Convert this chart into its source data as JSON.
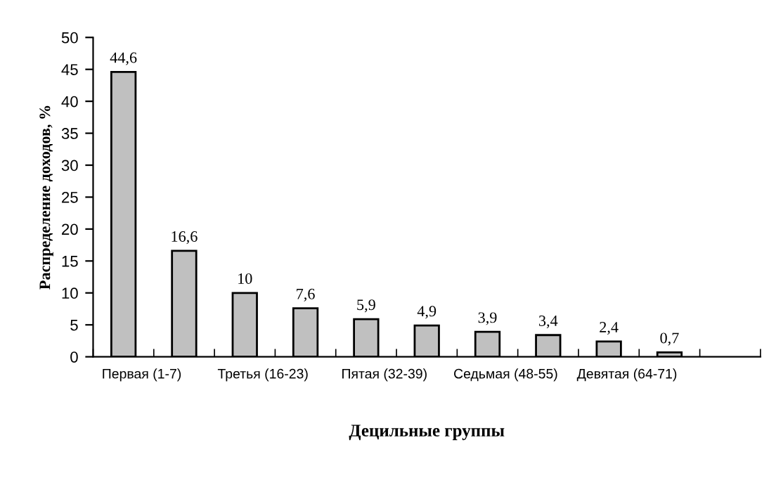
{
  "chart_data": {
    "type": "bar",
    "xlabel": "Децильные группы",
    "ylabel": "Распределение доходов, %",
    "categories": [
      "Первая (1-7)",
      null,
      "Третья (16-23)",
      null,
      "Пятая (32-39)",
      null,
      "Седьмая (48-55)",
      null,
      "Девятая (64-71)",
      null,
      null
    ],
    "values": [
      44.6,
      16.6,
      10,
      7.6,
      5.9,
      4.9,
      3.9,
      3.4,
      2.4,
      0.7,
      null
    ],
    "value_labels": [
      "44,6",
      "16,6",
      "10",
      "7,6",
      "5,9",
      "4,9",
      "3,9",
      "3,4",
      "2,4",
      "0,7",
      null
    ],
    "color": "#c0c0c0",
    "ylim": [
      0,
      50
    ],
    "yticks": [
      0,
      5,
      10,
      15,
      20,
      25,
      30,
      35,
      40,
      45,
      50
    ],
    "grid": false,
    "legend": false
  }
}
